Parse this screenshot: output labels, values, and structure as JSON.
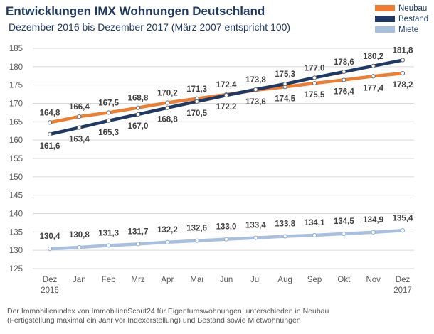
{
  "header": {
    "title": "Entwicklungen IMX Wohnungen Deutschland",
    "subtitle": "Dezember 2016 bis Dezember 2017 (März 2007 entspricht 100)"
  },
  "footnote": {
    "line1": "Der Immobilienindex von ImmobilienScout24 für Eigentumswohnungen, unterschieden in Neubau",
    "line2": "(Fertigstellung maximal ein Jahr vor Indexerstellung) und Bestand sowie Mietwohnungen"
  },
  "chart_data": {
    "type": "line",
    "title": "Entwicklungen IMX Wohnungen Deutschland",
    "subtitle": "Dezember 2016 bis Dezember 2017 (März 2007 entspricht 100)",
    "categories": [
      "Dez\n2016",
      "Jan",
      "Feb",
      "Mrz",
      "Apr",
      "Mai",
      "Jun",
      "Jul",
      "Aug",
      "Sep",
      "Okt",
      "Nov",
      "Dez\n2017"
    ],
    "ylim": [
      125,
      185
    ],
    "yticks": [
      125,
      130,
      135,
      140,
      145,
      150,
      155,
      160,
      165,
      170,
      175,
      180,
      185
    ],
    "grid": true,
    "legend": "top-right",
    "series": [
      {
        "name": "Neubau",
        "color": "#ed7d31",
        "values": [
          164.8,
          166.4,
          167.5,
          168.8,
          170.2,
          171.3,
          172.4,
          173.6,
          174.5,
          175.5,
          176.4,
          177.4,
          178.2
        ],
        "labels": [
          "164,8",
          "166,4",
          "167,5",
          "168,8",
          "170,2",
          "171,3",
          "172,4",
          "173,6",
          "174,5",
          "175,5",
          "176,4",
          "177,4",
          "178,2"
        ]
      },
      {
        "name": "Bestand",
        "color": "#1f3864",
        "values": [
          161.6,
          163.4,
          165.3,
          167.0,
          168.8,
          170.5,
          172.2,
          173.8,
          175.3,
          177.0,
          178.6,
          180.2,
          181.8
        ],
        "labels": [
          "161,6",
          "163,4",
          "165,3",
          "167,0",
          "168,8",
          "170,5",
          "172,2",
          "173,8",
          "175,3",
          "177,0",
          "178,6",
          "180,2",
          "181,8"
        ]
      },
      {
        "name": "Miete",
        "color": "#a9bfe0",
        "values": [
          130.4,
          130.8,
          131.3,
          131.7,
          132.2,
          132.6,
          133.0,
          133.4,
          133.8,
          134.1,
          134.5,
          134.9,
          135.4
        ],
        "labels": [
          "130,4",
          "130,8",
          "131,3",
          "131,7",
          "132,2",
          "132,6",
          "133,0",
          "133,4",
          "133,8",
          "134,1",
          "134,5",
          "134,9",
          "135,4"
        ]
      }
    ]
  }
}
